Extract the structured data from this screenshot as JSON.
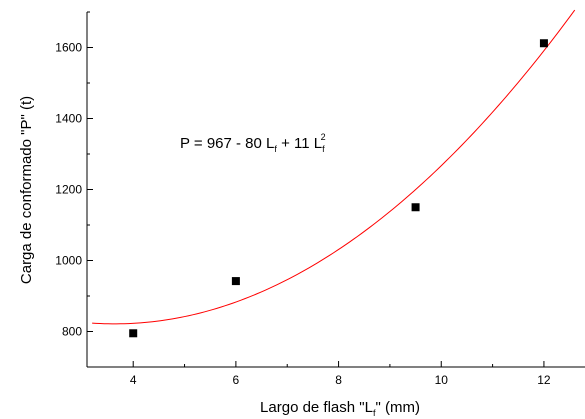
{
  "chart_data": {
    "type": "scatter",
    "xlabel": {
      "main": "Largo de flash \"L",
      "sub": "f",
      "tail": "\" (mm)"
    },
    "ylabel": "Carga de conformado \"P\" (t)",
    "xlim": [
      3.1,
      12.8
    ],
    "ylim": [
      700,
      1700
    ],
    "x_ticks": [
      4,
      6,
      8,
      10,
      12
    ],
    "y_ticks": [
      800,
      1000,
      1200,
      1400,
      1600
    ],
    "points": [
      {
        "x": 4,
        "y": 795
      },
      {
        "x": 6,
        "y": 942
      },
      {
        "x": 9.5,
        "y": 1150
      },
      {
        "x": 12,
        "y": 1612
      }
    ],
    "marker_color": "#000000",
    "fit": {
      "label": {
        "prefix": "P = 967 - 80 L",
        "sub1": "f",
        "mid": " + 11 L",
        "sub2": "f",
        "sup2": "2"
      },
      "coefficients": [
        967,
        -80,
        11
      ],
      "x_range": [
        3.2,
        12.6
      ],
      "color": "#ff0000"
    },
    "grid": false,
    "legend": "none"
  }
}
